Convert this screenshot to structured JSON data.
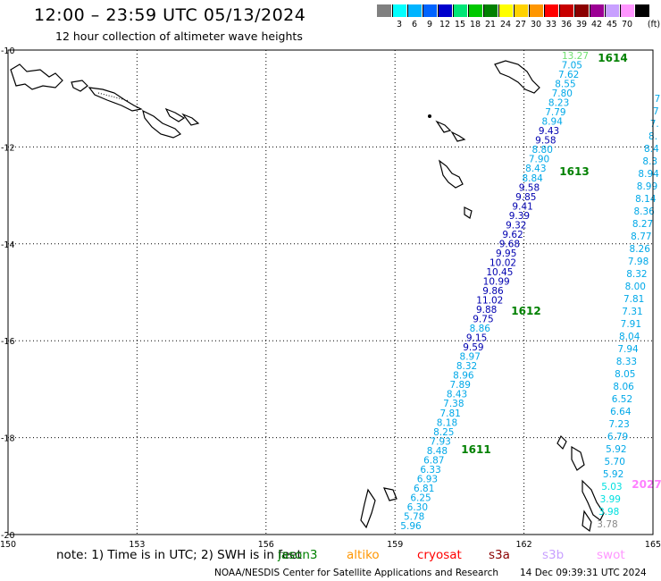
{
  "header": {
    "title": "12:00 – 23:59 UTC 05/13/2024",
    "subtitle": "12 hour collection of altimeter wave heights"
  },
  "color_scale": {
    "unit": "(ft)",
    "bins": [
      {
        "color": "#808080",
        "label": ""
      },
      {
        "color": "#00ffff",
        "label": "3"
      },
      {
        "color": "#00b4ff",
        "label": "6"
      },
      {
        "color": "#0064ff",
        "label": "9"
      },
      {
        "color": "#0000cd",
        "label": "12"
      },
      {
        "color": "#00e676",
        "label": "15"
      },
      {
        "color": "#00c800",
        "label": "18"
      },
      {
        "color": "#008000",
        "label": "21"
      },
      {
        "color": "#ffff00",
        "label": "24"
      },
      {
        "color": "#ffd200",
        "label": "27"
      },
      {
        "color": "#ff9600",
        "label": "30"
      },
      {
        "color": "#ff0000",
        "label": "33"
      },
      {
        "color": "#c80000",
        "label": "36"
      },
      {
        "color": "#8b0000",
        "label": "39"
      },
      {
        "color": "#9c0094",
        "label": "42"
      },
      {
        "color": "#c8a0ff",
        "label": "45"
      },
      {
        "color": "#ff96ff",
        "label": "70"
      },
      {
        "color": "#000000",
        "label": ""
      }
    ]
  },
  "axes": {
    "lon_ticks": [
      "150",
      "153",
      "156",
      "159",
      "162",
      "165"
    ],
    "lat_ticks": [
      "-10",
      "-12",
      "-14",
      "-16",
      "-18",
      "-20"
    ],
    "lon_range": [
      150,
      165
    ],
    "lat_range": [
      -20,
      -10
    ]
  },
  "passes": [
    {
      "label": "1614",
      "color": "#008000"
    },
    {
      "label": "1613",
      "color": "#008000"
    },
    {
      "label": "1612",
      "color": "#008000"
    },
    {
      "label": "1611",
      "color": "#008000"
    },
    {
      "label": "2027",
      "color": "#ff80ff"
    }
  ],
  "track_main": [
    {
      "v": "13.27",
      "c": "#70e070"
    },
    {
      "v": "7.05",
      "c": "#00a8e8"
    },
    {
      "v": "7.62",
      "c": "#00a8e8"
    },
    {
      "v": "8.55",
      "c": "#00a8e8"
    },
    {
      "v": "7.80",
      "c": "#00a8e8"
    },
    {
      "v": "8.23",
      "c": "#00a8e8"
    },
    {
      "v": "7.79",
      "c": "#00a8e8"
    },
    {
      "v": "8.94",
      "c": "#00a8e8"
    },
    {
      "v": "9.43",
      "c": "#0000b0"
    },
    {
      "v": "9.58",
      "c": "#0000b0"
    },
    {
      "v": "8.80",
      "c": "#00a8e8"
    },
    {
      "v": "7.90",
      "c": "#00a8e8"
    },
    {
      "v": "8.43",
      "c": "#00a8e8"
    },
    {
      "v": "8.84",
      "c": "#00a8e8"
    },
    {
      "v": "9.58",
      "c": "#0000b0"
    },
    {
      "v": "9.85",
      "c": "#0000b0"
    },
    {
      "v": "9.41",
      "c": "#0000b0"
    },
    {
      "v": "9.39",
      "c": "#0000b0"
    },
    {
      "v": "9.32",
      "c": "#0000b0"
    },
    {
      "v": "9.62",
      "c": "#0000b0"
    },
    {
      "v": "9.68",
      "c": "#0000b0"
    },
    {
      "v": "9.95",
      "c": "#0000b0"
    },
    {
      "v": "10.02",
      "c": "#0000b0"
    },
    {
      "v": "10.45",
      "c": "#0000b0"
    },
    {
      "v": "10.99",
      "c": "#0000b0"
    },
    {
      "v": "9.86",
      "c": "#0000b0"
    },
    {
      "v": "11.02",
      "c": "#0000b0"
    },
    {
      "v": "9.88",
      "c": "#0000b0"
    },
    {
      "v": "9.75",
      "c": "#0000b0"
    },
    {
      "v": "8.86",
      "c": "#00a8e8"
    },
    {
      "v": "9.15",
      "c": "#0000b0"
    },
    {
      "v": "9.59",
      "c": "#0000b0"
    },
    {
      "v": "8.97",
      "c": "#00a8e8"
    },
    {
      "v": "8.32",
      "c": "#00a8e8"
    },
    {
      "v": "8.96",
      "c": "#00a8e8"
    },
    {
      "v": "7.89",
      "c": "#00a8e8"
    },
    {
      "v": "8.43",
      "c": "#00a8e8"
    },
    {
      "v": "7.38",
      "c": "#00a8e8"
    },
    {
      "v": "7.81",
      "c": "#00a8e8"
    },
    {
      "v": "8.18",
      "c": "#00a8e8"
    },
    {
      "v": "8.25",
      "c": "#00a8e8"
    },
    {
      "v": "7.93",
      "c": "#00a8e8"
    },
    {
      "v": "8.48",
      "c": "#00a8e8"
    },
    {
      "v": "6.87",
      "c": "#00a8e8"
    },
    {
      "v": "6.33",
      "c": "#00a8e8"
    },
    {
      "v": "6.93",
      "c": "#00a8e8"
    },
    {
      "v": "6.81",
      "c": "#00a8e8"
    },
    {
      "v": "6.25",
      "c": "#00a8e8"
    },
    {
      "v": "6.30",
      "c": "#00a8e8"
    },
    {
      "v": "5.78",
      "c": "#00a8e8"
    },
    {
      "v": "5.96",
      "c": "#00a8e8"
    }
  ],
  "track_east": [
    {
      "v": "7",
      "c": "#00a8e8"
    },
    {
      "v": "7",
      "c": "#00a8e8"
    },
    {
      "v": "7.",
      "c": "#00a8e8"
    },
    {
      "v": "8.",
      "c": "#00a8e8"
    },
    {
      "v": "8.4",
      "c": "#00a8e8"
    },
    {
      "v": "8.3",
      "c": "#00a8e8"
    },
    {
      "v": "8.94",
      "c": "#00a8e8"
    },
    {
      "v": "8.99",
      "c": "#00a8e8"
    },
    {
      "v": "8.14",
      "c": "#00a8e8"
    },
    {
      "v": "8.36",
      "c": "#00a8e8"
    },
    {
      "v": "8.27",
      "c": "#00a8e8"
    },
    {
      "v": "8.77",
      "c": "#00a8e8"
    },
    {
      "v": "8.26",
      "c": "#00a8e8"
    },
    {
      "v": "7.98",
      "c": "#00a8e8"
    },
    {
      "v": "8.32",
      "c": "#00a8e8"
    },
    {
      "v": "8.00",
      "c": "#00a8e8"
    },
    {
      "v": "7.81",
      "c": "#00a8e8"
    },
    {
      "v": "7.31",
      "c": "#00a8e8"
    },
    {
      "v": "7.91",
      "c": "#00a8e8"
    },
    {
      "v": "8.04",
      "c": "#00a8e8"
    },
    {
      "v": "7.94",
      "c": "#00a8e8"
    },
    {
      "v": "8.33",
      "c": "#00a8e8"
    },
    {
      "v": "8.05",
      "c": "#00a8e8"
    },
    {
      "v": "8.06",
      "c": "#00a8e8"
    },
    {
      "v": "6.52",
      "c": "#00a8e8"
    },
    {
      "v": "6.64",
      "c": "#00a8e8"
    },
    {
      "v": "7.23",
      "c": "#00a8e8"
    },
    {
      "v": "6.79",
      "c": "#00a8e8"
    },
    {
      "v": "5.92",
      "c": "#00a8e8"
    },
    {
      "v": "5.70",
      "c": "#00a8e8"
    },
    {
      "v": "5.92",
      "c": "#00a8e8"
    },
    {
      "v": "5.03",
      "c": "#00e0e0"
    },
    {
      "v": "3.99",
      "c": "#00e0e0"
    },
    {
      "v": "3.98",
      "c": "#00e0e0"
    },
    {
      "v": "3.78",
      "c": "#888888"
    }
  ],
  "note": "note:  1)  Time is in UTC;  2)  SWH is in feet",
  "satellites": [
    {
      "name": "jason3",
      "color": "#008000"
    },
    {
      "name": "altiko",
      "color": "#ff9600"
    },
    {
      "name": "cryosat",
      "color": "#ff0000"
    },
    {
      "name": "s3a",
      "color": "#8b0000"
    },
    {
      "name": "s3b",
      "color": "#c8a0ff"
    },
    {
      "name": "swot",
      "color": "#ff96ff"
    }
  ],
  "footer": {
    "credit": "NOAA/NESDIS Center for Satellite Applications and Research",
    "timestamp": "14 Dec 09:39:31 UTC 2024"
  }
}
